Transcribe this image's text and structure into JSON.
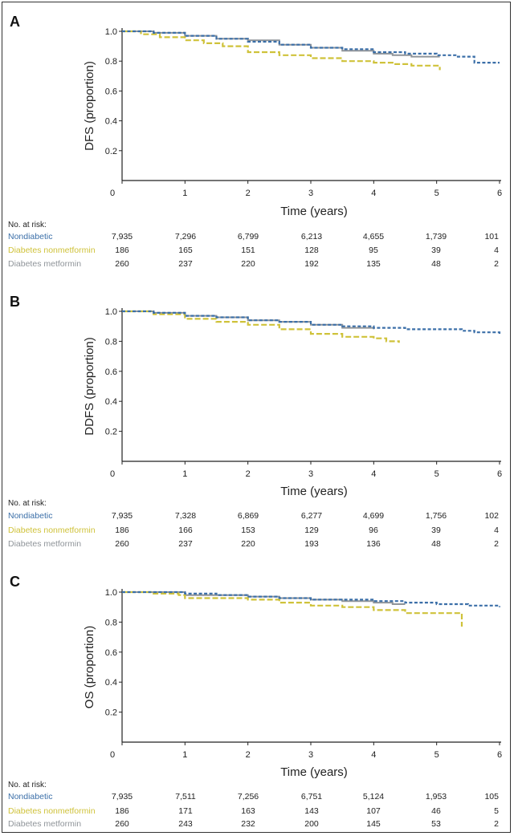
{
  "colors": {
    "Nondiabetic": "#3b6fa8",
    "Diabetes nonmetformin": "#cfc23a",
    "Diabetes metformin": "#8f9499"
  },
  "risk_title": "No. at risk:",
  "chart_data": [
    {
      "panel": "A",
      "type": "line",
      "ylabel": "DFS (proportion)",
      "xlabel": "Time (years)",
      "xlim": [
        0,
        6
      ],
      "ylim": [
        0,
        1.0
      ],
      "xticks": [
        "0",
        "1",
        "2",
        "3",
        "4",
        "5",
        "6"
      ],
      "yticks": [
        "0.2",
        "0.4",
        "0.6",
        "0.8",
        "1.0"
      ],
      "series": [
        {
          "name": "Nondiabetic",
          "style": "dashed",
          "points": [
            [
              0,
              1.0
            ],
            [
              0.5,
              0.99
            ],
            [
              1,
              0.97
            ],
            [
              1.5,
              0.95
            ],
            [
              2,
              0.93
            ],
            [
              2.5,
              0.91
            ],
            [
              3,
              0.89
            ],
            [
              3.5,
              0.88
            ],
            [
              4,
              0.86
            ],
            [
              4.5,
              0.85
            ],
            [
              5,
              0.84
            ],
            [
              5.3,
              0.83
            ],
            [
              5.6,
              0.79
            ],
            [
              6,
              0.79
            ]
          ]
        },
        {
          "name": "Diabetes nonmetformin",
          "style": "dashed",
          "points": [
            [
              0,
              1.0
            ],
            [
              0.3,
              0.98
            ],
            [
              0.6,
              0.96
            ],
            [
              1,
              0.94
            ],
            [
              1.3,
              0.92
            ],
            [
              1.6,
              0.9
            ],
            [
              2,
              0.86
            ],
            [
              2.5,
              0.84
            ],
            [
              3,
              0.82
            ],
            [
              3.5,
              0.8
            ],
            [
              4,
              0.79
            ],
            [
              4.3,
              0.78
            ],
            [
              4.6,
              0.77
            ],
            [
              5.05,
              0.77
            ],
            [
              5.05,
              0.74
            ]
          ]
        },
        {
          "name": "Diabetes metformin",
          "style": "solid",
          "points": [
            [
              0,
              1.0
            ],
            [
              0.5,
              0.99
            ],
            [
              1,
              0.97
            ],
            [
              1.5,
              0.95
            ],
            [
              2,
              0.94
            ],
            [
              2.5,
              0.91
            ],
            [
              3,
              0.89
            ],
            [
              3.5,
              0.87
            ],
            [
              4,
              0.85
            ],
            [
              4.3,
              0.84
            ],
            [
              4.6,
              0.83
            ],
            [
              5.05,
              0.83
            ]
          ]
        }
      ],
      "risk_table": [
        {
          "label": "Nondiabetic",
          "values": [
            "7,935",
            "7,296",
            "6,799",
            "6,213",
            "4,655",
            "1,739",
            "101"
          ]
        },
        {
          "label": "Diabetes nonmetformin",
          "values": [
            "186",
            "165",
            "151",
            "128",
            "95",
            "39",
            "4"
          ]
        },
        {
          "label": "Diabetes metformin",
          "values": [
            "260",
            "237",
            "220",
            "192",
            "135",
            "48",
            "2"
          ]
        }
      ]
    },
    {
      "panel": "B",
      "type": "line",
      "ylabel": "DDFS (proportion)",
      "xlabel": "Time (years)",
      "xlim": [
        0,
        6
      ],
      "ylim": [
        0,
        1.0
      ],
      "xticks": [
        "0",
        "1",
        "2",
        "3",
        "4",
        "5",
        "6"
      ],
      "yticks": [
        "0.2",
        "0.4",
        "0.6",
        "0.8",
        "1.0"
      ],
      "series": [
        {
          "name": "Nondiabetic",
          "style": "dashed",
          "points": [
            [
              0,
              1.0
            ],
            [
              0.5,
              0.99
            ],
            [
              1,
              0.97
            ],
            [
              1.5,
              0.96
            ],
            [
              2,
              0.94
            ],
            [
              2.5,
              0.93
            ],
            [
              3,
              0.91
            ],
            [
              3.5,
              0.9
            ],
            [
              4,
              0.89
            ],
            [
              4.5,
              0.88
            ],
            [
              5,
              0.88
            ],
            [
              5.4,
              0.87
            ],
            [
              5.6,
              0.86
            ],
            [
              6,
              0.85
            ]
          ]
        },
        {
          "name": "Diabetes nonmetformin",
          "style": "dashed",
          "points": [
            [
              0,
              1.0
            ],
            [
              0.5,
              0.98
            ],
            [
              1,
              0.95
            ],
            [
              1.5,
              0.93
            ],
            [
              2,
              0.91
            ],
            [
              2.5,
              0.88
            ],
            [
              3,
              0.85
            ],
            [
              3.5,
              0.83
            ],
            [
              4,
              0.82
            ],
            [
              4.2,
              0.8
            ],
            [
              4.4,
              0.79
            ]
          ]
        },
        {
          "name": "Diabetes metformin",
          "style": "solid",
          "points": [
            [
              0,
              1.0
            ],
            [
              0.5,
              0.99
            ],
            [
              1,
              0.97
            ],
            [
              1.5,
              0.96
            ],
            [
              2,
              0.94
            ],
            [
              2.5,
              0.93
            ],
            [
              3,
              0.91
            ],
            [
              3.5,
              0.89
            ],
            [
              4,
              0.88
            ]
          ]
        }
      ],
      "risk_table": [
        {
          "label": "Nondiabetic",
          "values": [
            "7,935",
            "7,328",
            "6,869",
            "6,277",
            "4,699",
            "1,756",
            "102"
          ]
        },
        {
          "label": "Diabetes nonmetformin",
          "values": [
            "186",
            "166",
            "153",
            "129",
            "96",
            "39",
            "4"
          ]
        },
        {
          "label": "Diabetes metformin",
          "values": [
            "260",
            "237",
            "220",
            "193",
            "136",
            "48",
            "2"
          ]
        }
      ]
    },
    {
      "panel": "C",
      "type": "line",
      "ylabel": "OS (proportion)",
      "xlabel": "Time (years)",
      "xlim": [
        0,
        6
      ],
      "ylim": [
        0,
        1.0
      ],
      "xticks": [
        "0",
        "1",
        "2",
        "3",
        "4",
        "5",
        "6"
      ],
      "yticks": [
        "0.2",
        "0.4",
        "0.6",
        "0.8",
        "1.0"
      ],
      "series": [
        {
          "name": "Nondiabetic",
          "style": "dashed",
          "points": [
            [
              0,
              1.0
            ],
            [
              0.5,
              1.0
            ],
            [
              1,
              0.99
            ],
            [
              1.5,
              0.98
            ],
            [
              2,
              0.97
            ],
            [
              2.5,
              0.96
            ],
            [
              3,
              0.95
            ],
            [
              3.5,
              0.95
            ],
            [
              4,
              0.94
            ],
            [
              4.5,
              0.93
            ],
            [
              5,
              0.92
            ],
            [
              5.5,
              0.91
            ],
            [
              6,
              0.9
            ]
          ]
        },
        {
          "name": "Diabetes nonmetformin",
          "style": "dashed",
          "points": [
            [
              0,
              1.0
            ],
            [
              0.5,
              0.99
            ],
            [
              0.9,
              0.98
            ],
            [
              1,
              0.96
            ],
            [
              1.5,
              0.96
            ],
            [
              2,
              0.95
            ],
            [
              2.5,
              0.93
            ],
            [
              3,
              0.91
            ],
            [
              3.5,
              0.9
            ],
            [
              4,
              0.88
            ],
            [
              4.5,
              0.86
            ],
            [
              5,
              0.86
            ],
            [
              5.4,
              0.83
            ],
            [
              5.4,
              0.77
            ]
          ]
        },
        {
          "name": "Diabetes metformin",
          "style": "solid",
          "points": [
            [
              0,
              1.0
            ],
            [
              0.5,
              1.0
            ],
            [
              1,
              0.98
            ],
            [
              1.5,
              0.98
            ],
            [
              2,
              0.97
            ],
            [
              2.5,
              0.96
            ],
            [
              3,
              0.95
            ],
            [
              3.5,
              0.94
            ],
            [
              4,
              0.93
            ],
            [
              4.3,
              0.92
            ],
            [
              4.5,
              0.92
            ]
          ]
        }
      ],
      "risk_table": [
        {
          "label": "Nondiabetic",
          "values": [
            "7,935",
            "7,511",
            "7,256",
            "6,751",
            "5,124",
            "1,953",
            "105"
          ]
        },
        {
          "label": "Diabetes nonmetformin",
          "values": [
            "186",
            "171",
            "163",
            "143",
            "107",
            "46",
            "5"
          ]
        },
        {
          "label": "Diabetes metformin",
          "values": [
            "260",
            "243",
            "232",
            "200",
            "145",
            "53",
            "2"
          ]
        }
      ]
    }
  ]
}
